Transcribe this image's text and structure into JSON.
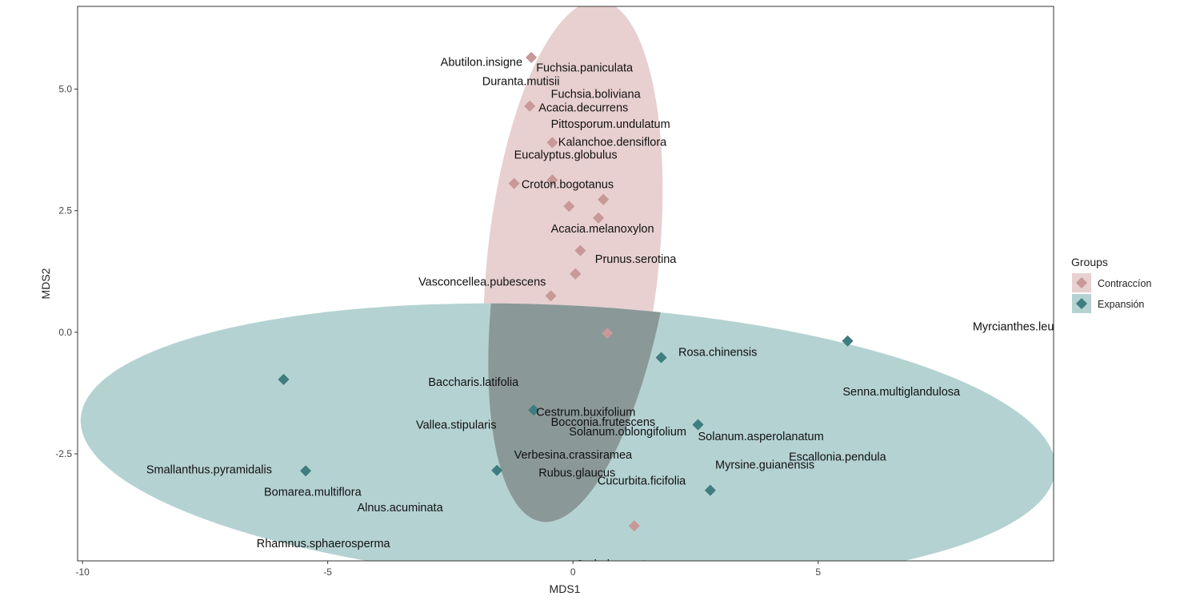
{
  "chart_data": {
    "type": "scatter",
    "title": "",
    "xlabel": "MDS1",
    "ylabel": "MDS2",
    "xlim": [
      -10.1,
      9.8
    ],
    "ylim": [
      -4.7,
      6.7
    ],
    "x_ticks": [
      -10,
      -5,
      0,
      5
    ],
    "y_ticks": [
      -2.5,
      0.0,
      2.5,
      5.0
    ],
    "x_tick_labels": [
      "-10",
      "-5",
      "0",
      "5"
    ],
    "y_tick_labels": [
      "-2.5",
      "0.0",
      "2.5",
      "5.0"
    ],
    "grid": false,
    "legend": {
      "title": "Groups",
      "position": "right",
      "entries": [
        {
          "label": "Contraccíon",
          "color": "#c99898"
        },
        {
          "label": "Expansión",
          "color": "#3f7d80"
        }
      ]
    },
    "colors": {
      "contraccion_point": "#c99898",
      "expansion_point": "#3f7d80",
      "contraccion_ellipse": "#e8d0d0",
      "expansion_ellipse": "#b5d2d2",
      "overlap": "#8a9898"
    },
    "ellipses": [
      {
        "group": "Contraccíon",
        "center": [
          0.0,
          1.45
        ],
        "semi_axes": [
          1.75,
          5.4
        ],
        "angle_deg": 6
      },
      {
        "group": "Expansión",
        "center": [
          -0.1,
          -2.3
        ],
        "semi_axes": [
          9.95,
          2.85
        ],
        "angle_deg": 3
      }
    ],
    "points": [
      {
        "group": "Contraccíon",
        "x": -0.85,
        "y": 5.65
      },
      {
        "group": "Contraccíon",
        "x": -0.88,
        "y": 4.65
      },
      {
        "group": "Contraccíon",
        "x": -0.42,
        "y": 3.9
      },
      {
        "group": "Contraccíon",
        "x": -1.2,
        "y": 3.06
      },
      {
        "group": "Contraccíon",
        "x": -0.42,
        "y": 3.13
      },
      {
        "group": "Contraccíon",
        "x": -0.08,
        "y": 2.59
      },
      {
        "group": "Contraccíon",
        "x": 0.62,
        "y": 2.73
      },
      {
        "group": "Contraccíon",
        "x": 0.52,
        "y": 2.35
      },
      {
        "group": "Contraccíon",
        "x": 0.15,
        "y": 1.68
      },
      {
        "group": "Contraccíon",
        "x": 0.05,
        "y": 1.2
      },
      {
        "group": "Contraccíon",
        "x": -0.45,
        "y": 0.75
      },
      {
        "group": "Contraccíon",
        "x": 0.7,
        "y": -0.02
      },
      {
        "group": "Contraccíon",
        "x": 1.25,
        "y": -3.98
      },
      {
        "group": "Expansión",
        "x": 5.6,
        "y": -0.18
      },
      {
        "group": "Expansión",
        "x": 1.8,
        "y": -0.52
      },
      {
        "group": "Expansión",
        "x": -5.9,
        "y": -0.97
      },
      {
        "group": "Expansión",
        "x": -0.8,
        "y": -1.6
      },
      {
        "group": "Expansión",
        "x": 2.55,
        "y": -1.9
      },
      {
        "group": "Expansión",
        "x": -5.45,
        "y": -2.85
      },
      {
        "group": "Expansión",
        "x": -1.55,
        "y": -2.84
      },
      {
        "group": "Expansión",
        "x": 2.8,
        "y": -3.25
      }
    ],
    "species_labels": [
      {
        "text": "Abutilon.insigne",
        "x": -2.7,
        "y": 5.48
      },
      {
        "text": "Fuchsia.paniculata",
        "x": -0.75,
        "y": 5.36
      },
      {
        "text": "Duranta.mutisii",
        "x": -1.85,
        "y": 5.08
      },
      {
        "text": "Fuchsia.boliviana",
        "x": -0.45,
        "y": 4.82
      },
      {
        "text": "Acacia.decurrens",
        "x": -0.7,
        "y": 4.54
      },
      {
        "text": "Pittosporum.undulatum",
        "x": -0.45,
        "y": 4.2
      },
      {
        "text": "Kalanchoe.densiflora",
        "x": -0.3,
        "y": 3.83
      },
      {
        "text": "Eucalyptus.globulus",
        "x": -1.2,
        "y": 3.57
      },
      {
        "text": "Croton.bogotanus",
        "x": -1.05,
        "y": 2.96
      },
      {
        "text": "Acacia.melanoxylon",
        "x": -0.45,
        "y": 2.05
      },
      {
        "text": "Prunus.serotina",
        "x": 0.45,
        "y": 1.43
      },
      {
        "text": "Vasconcellea.pubescens",
        "x": -3.15,
        "y": 0.96
      },
      {
        "text": "Myrcianthes.leu",
        "x": 8.15,
        "y": 0.04
      },
      {
        "text": "Rosa.chinensis",
        "x": 2.15,
        "y": -0.49
      },
      {
        "text": "Baccharis.latifolia",
        "x": -2.95,
        "y": -1.1
      },
      {
        "text": "Senna.multiglandulosa",
        "x": 5.5,
        "y": -1.3
      },
      {
        "text": "Cestrum.buxifolium",
        "x": -0.75,
        "y": -1.72
      },
      {
        "text": "Bocconia.frutescens",
        "x": -0.45,
        "y": -1.92
      },
      {
        "text": "Vallea.stipularis",
        "x": -3.2,
        "y": -1.98
      },
      {
        "text": "Solanum.oblongifolium",
        "x": -0.08,
        "y": -2.12
      },
      {
        "text": "Solanum.asperolanatum",
        "x": 2.55,
        "y": -2.22
      },
      {
        "text": "Verbesina.crassiramea",
        "x": -1.2,
        "y": -2.6
      },
      {
        "text": "Escallonia.pendula",
        "x": 4.4,
        "y": -2.64
      },
      {
        "text": "Myrsine.guianensis",
        "x": 2.9,
        "y": -2.8
      },
      {
        "text": "Smallanthus.pyramidalis",
        "x": -8.7,
        "y": -2.9
      },
      {
        "text": "Rubus.glaucus",
        "x": -0.7,
        "y": -2.97
      },
      {
        "text": "Cucurbita.ficifolia",
        "x": 0.5,
        "y": -3.13
      },
      {
        "text": "Bomarea.multiflora",
        "x": -6.3,
        "y": -3.36
      },
      {
        "text": "Alnus.acuminata",
        "x": -4.4,
        "y": -3.68
      },
      {
        "text": "Rhamnus.sphaerosperma",
        "x": -6.45,
        "y": -4.42
      },
      {
        "text": "Cedrela.montana",
        "x": 0.05,
        "y": -4.85
      }
    ]
  }
}
